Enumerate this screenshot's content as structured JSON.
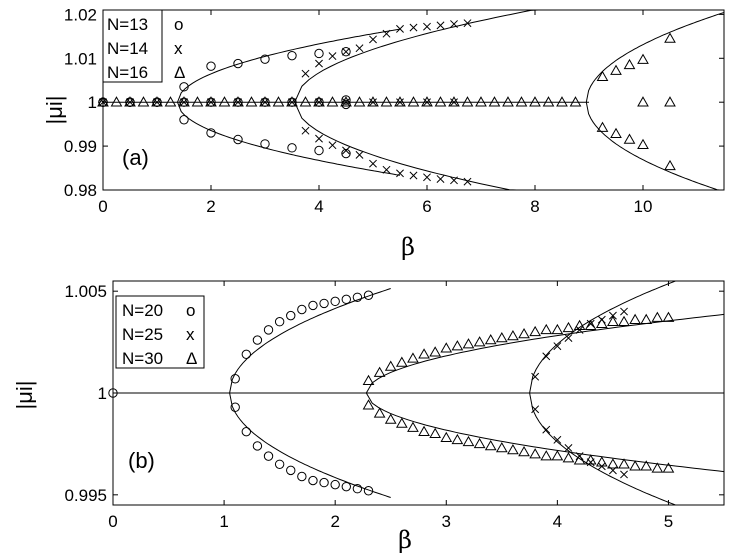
{
  "chart_data": [
    {
      "type": "scatter",
      "panel_label": "(a)",
      "xlabel": "β",
      "ylabel": "|μi|",
      "xlim": [
        0,
        11.5
      ],
      "ylim": [
        0.98,
        1.021
      ],
      "xticks": [
        0,
        2,
        4,
        6,
        8,
        10
      ],
      "xtick_labels": [
        "0",
        "2",
        "4",
        "6",
        "8",
        "10"
      ],
      "yticks": [
        0.98,
        0.99,
        1.0,
        1.01,
        1.02
      ],
      "ytick_labels": [
        "0.98",
        "0.99",
        "1",
        "1.01",
        "1.02"
      ],
      "legend_position": "top-left",
      "legend": [
        {
          "label": "N=13",
          "marker": "o"
        },
        {
          "label": "N=14",
          "marker": "x"
        },
        {
          "label": "N=16",
          "marker": "Δ"
        }
      ],
      "series": [
        {
          "name": "N=13",
          "marker": "circle",
          "x": [
            0,
            0.5,
            1,
            1.5,
            2,
            2.5,
            3,
            3.5,
            4,
            4.5,
            0,
            0.5,
            1,
            1.5,
            2,
            2.5,
            3,
            3.5,
            4,
            4.5,
            0,
            0.5,
            1,
            1.5,
            2,
            2.5,
            3,
            3.5,
            4,
            4.5,
            4.5
          ],
          "y": [
            1,
            1,
            1,
            1.0035,
            1.0082,
            1.0088,
            1.0098,
            1.0106,
            1.0111,
            1.0115,
            1,
            1,
            1,
            0.996,
            0.993,
            0.9915,
            0.9905,
            0.9896,
            0.989,
            0.9883,
            1,
            1,
            1,
            1,
            1,
            1,
            1,
            1,
            1,
            1.0005,
            0.9995
          ]
        },
        {
          "name": "N=14",
          "marker": "x",
          "x": [
            3.75,
            4.0,
            4.25,
            4.5,
            4.75,
            5.0,
            5.25,
            5.5,
            5.75,
            6.0,
            6.25,
            6.5,
            6.75,
            3.75,
            4.0,
            4.25,
            4.5,
            4.75,
            5.0,
            5.25,
            5.5,
            5.75,
            6.0,
            6.25,
            6.5,
            6.75,
            0,
            0.5,
            1,
            1.5,
            2,
            2.5,
            3,
            3.5,
            4,
            4.5,
            5,
            5.5,
            6,
            6.5
          ],
          "y": [
            1.0065,
            1.0088,
            1.0105,
            1.0115,
            1.0123,
            1.0143,
            1.0156,
            1.0167,
            1.017,
            1.0172,
            1.0175,
            1.0178,
            1.018,
            0.9935,
            0.9917,
            0.9902,
            0.989,
            0.988,
            0.986,
            0.9846,
            0.9838,
            0.9833,
            0.9829,
            0.9825,
            0.9822,
            0.9819,
            1,
            1,
            1,
            1,
            1,
            1,
            1,
            1,
            1,
            1,
            1,
            1,
            1,
            1
          ]
        },
        {
          "name": "N=16",
          "marker": "triangle",
          "x": [
            0,
            0.25,
            0.5,
            0.75,
            1,
            1.25,
            1.5,
            1.75,
            2,
            2.25,
            2.5,
            2.75,
            3,
            3.25,
            3.5,
            3.75,
            4,
            4.25,
            4.5,
            4.75,
            5,
            5.25,
            5.5,
            5.75,
            6,
            6.25,
            6.5,
            6.75,
            7,
            7.25,
            7.5,
            7.75,
            8,
            8.25,
            8.5,
            8.75,
            9.25,
            9.5,
            9.75,
            10,
            10.5,
            9.25,
            9.5,
            9.75,
            10,
            10.5,
            10,
            10.5
          ],
          "y": [
            1,
            1,
            1,
            1,
            1,
            1,
            1,
            1,
            1,
            1,
            1,
            1,
            1,
            1,
            1,
            1,
            1,
            1,
            1,
            1,
            1,
            1,
            1,
            1,
            1,
            1,
            1,
            1,
            1,
            1,
            1,
            1,
            1,
            1,
            1,
            1,
            1.0058,
            1.0072,
            1.0085,
            1.0097,
            1.0145,
            0.9942,
            0.9928,
            0.9915,
            0.9903,
            0.9855,
            1,
            1
          ]
        }
      ],
      "curves_note": "solid lines are analytic eigenvalue branches"
    },
    {
      "type": "scatter",
      "panel_label": "(b)",
      "xlabel": "β",
      "ylabel": "|μi|",
      "xlim": [
        0,
        5.5
      ],
      "ylim": [
        0.9945,
        1.0055
      ],
      "xticks": [
        0,
        1,
        2,
        3,
        4,
        5
      ],
      "xtick_labels": [
        "0",
        "1",
        "2",
        "3",
        "4",
        "5"
      ],
      "yticks": [
        0.995,
        1.0,
        1.005
      ],
      "ytick_labels": [
        "0.995",
        "1",
        "1.005"
      ],
      "legend_position": "top-left",
      "legend": [
        {
          "label": "N=20",
          "marker": "o"
        },
        {
          "label": "N=25",
          "marker": "x"
        },
        {
          "label": "N=30",
          "marker": "Δ"
        }
      ],
      "series": [
        {
          "name": "N=20",
          "marker": "circle",
          "x": [
            1.1,
            1.2,
            1.3,
            1.4,
            1.5,
            1.6,
            1.7,
            1.8,
            1.9,
            2.0,
            2.1,
            2.2,
            2.3,
            1.1,
            1.2,
            1.3,
            1.4,
            1.5,
            1.6,
            1.7,
            1.8,
            1.9,
            2.0,
            2.1,
            2.2,
            2.3,
            0
          ],
          "y": [
            1.0007,
            1.0019,
            1.0026,
            1.0031,
            1.0035,
            1.0038,
            1.0041,
            1.0043,
            1.0044,
            1.0045,
            1.0046,
            1.0047,
            1.0048,
            0.9993,
            0.9981,
            0.9974,
            0.9969,
            0.9965,
            0.9962,
            0.9959,
            0.9957,
            0.9956,
            0.9955,
            0.9954,
            0.9953,
            0.9952,
            1.0
          ]
        },
        {
          "name": "N=25",
          "marker": "x",
          "x": [
            3.8,
            3.9,
            4.0,
            4.1,
            4.2,
            4.3,
            4.4,
            4.5,
            4.6,
            3.8,
            3.9,
            4.0,
            4.1,
            4.2,
            4.3,
            4.4,
            4.5,
            4.6
          ],
          "y": [
            1.0008,
            1.0018,
            1.0023,
            1.0027,
            1.0031,
            1.0034,
            1.0036,
            1.0038,
            1.004,
            0.9992,
            0.9982,
            0.9977,
            0.9973,
            0.9969,
            0.9966,
            0.9964,
            0.9962,
            0.996
          ]
        },
        {
          "name": "N=30",
          "marker": "triangle",
          "x": [
            2.3,
            2.4,
            2.5,
            2.6,
            2.7,
            2.8,
            2.9,
            3.0,
            3.1,
            3.2,
            3.3,
            3.4,
            3.5,
            3.6,
            3.7,
            3.8,
            3.9,
            4.0,
            4.1,
            4.2,
            4.3,
            4.4,
            4.5,
            4.6,
            4.7,
            4.8,
            4.9,
            5.0,
            2.3,
            2.4,
            2.5,
            2.6,
            2.7,
            2.8,
            2.9,
            3.0,
            3.1,
            3.2,
            3.3,
            3.4,
            3.5,
            3.6,
            3.7,
            3.8,
            3.9,
            4.0,
            4.1,
            4.2,
            4.3,
            4.4,
            4.5,
            4.6,
            4.7,
            4.8,
            4.9,
            5.0
          ],
          "y": [
            1.0006,
            1.001,
            1.0013,
            1.0015,
            1.0017,
            1.0019,
            1.002,
            1.0022,
            1.0023,
            1.0024,
            1.0025,
            1.0026,
            1.0027,
            1.0028,
            1.0029,
            1.003,
            1.0031,
            1.0031,
            1.0032,
            1.0033,
            1.0033,
            1.0034,
            1.0035,
            1.0035,
            1.0036,
            1.0036,
            1.0037,
            1.0037,
            0.9994,
            0.999,
            0.9987,
            0.9985,
            0.9983,
            0.9981,
            0.998,
            0.9978,
            0.9977,
            0.9976,
            0.9975,
            0.9974,
            0.9973,
            0.9972,
            0.9971,
            0.997,
            0.9969,
            0.9969,
            0.9968,
            0.9967,
            0.9967,
            0.9966,
            0.9965,
            0.9965,
            0.9964,
            0.9964,
            0.9963,
            0.9963
          ]
        }
      ],
      "curves_note": "solid lines are analytic eigenvalue branches"
    }
  ]
}
